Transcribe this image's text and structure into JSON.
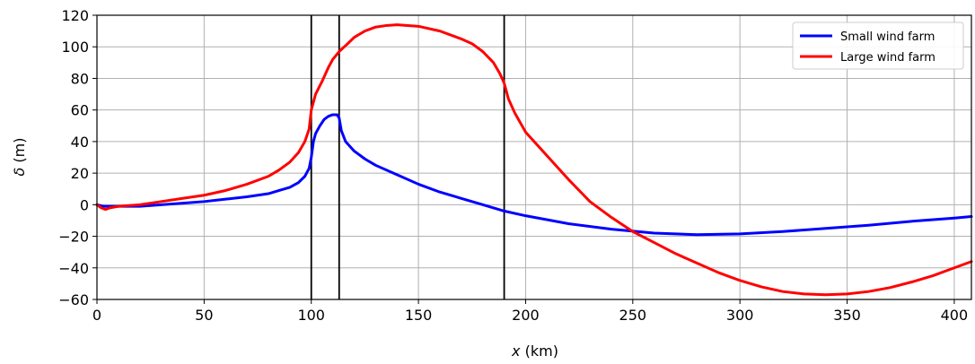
{
  "chart_data": {
    "type": "line",
    "title": "",
    "xlabel": "x (km)",
    "xlabel_var": "x",
    "xlabel_unit": " (km)",
    "ylabel": "δ (m)",
    "ylabel_var": "δ",
    "ylabel_unit": " (m)",
    "xlim": [
      0,
      408
    ],
    "ylim": [
      -60,
      120
    ],
    "xticks": [
      0,
      50,
      100,
      150,
      200,
      250,
      300,
      350,
      400
    ],
    "yticks": [
      -60,
      -40,
      -20,
      0,
      20,
      40,
      60,
      80,
      100,
      120
    ],
    "grid": true,
    "legend_position": "top-right",
    "vlines": [
      100,
      113,
      190
    ],
    "series": [
      {
        "name": "Small wind farm",
        "color": "#0000ff",
        "x": [
          0,
          3,
          5,
          10,
          20,
          30,
          40,
          50,
          60,
          70,
          80,
          85,
          90,
          94,
          97,
          99,
          100,
          101,
          102,
          104,
          106,
          108,
          110,
          112,
          113,
          114,
          116,
          120,
          125,
          130,
          140,
          150,
          160,
          170,
          180,
          190,
          200,
          220,
          240,
          260,
          280,
          300,
          320,
          340,
          360,
          380,
          400,
          408
        ],
        "y": [
          0,
          -1,
          -1,
          -1,
          -1,
          0,
          1,
          2,
          3.5,
          5,
          7,
          9,
          11,
          14,
          18,
          23,
          30,
          40,
          45,
          50,
          54,
          56,
          57,
          57,
          55,
          47,
          40,
          34,
          29,
          25,
          19,
          13,
          8,
          4,
          0,
          -4,
          -7,
          -12,
          -15.5,
          -18,
          -19,
          -18.5,
          -17,
          -15,
          -13,
          -10.5,
          -8.5,
          -7.5
        ]
      },
      {
        "name": "Large wind farm",
        "color": "#ff0000",
        "x": [
          0,
          2,
          4,
          6,
          10,
          20,
          30,
          40,
          50,
          60,
          70,
          80,
          85,
          90,
          94,
          97,
          99,
          100,
          102,
          105,
          108,
          110,
          113,
          117,
          120,
          125,
          130,
          135,
          140,
          145,
          150,
          160,
          170,
          175,
          180,
          185,
          188,
          190,
          192,
          195,
          200,
          210,
          220,
          230,
          240,
          250,
          260,
          270,
          280,
          290,
          300,
          310,
          320,
          330,
          340,
          350,
          360,
          370,
          380,
          390,
          400,
          408
        ],
        "y": [
          0,
          -2,
          -3,
          -2,
          -1,
          0,
          2,
          4,
          6,
          9,
          13,
          18,
          22,
          27,
          33,
          40,
          48,
          60,
          70,
          78,
          87,
          92,
          97,
          102,
          106,
          110,
          112.5,
          113.5,
          114,
          113.5,
          113,
          110,
          105,
          102,
          97,
          90,
          83,
          77,
          67,
          58,
          46,
          31,
          16,
          2,
          -8,
          -17,
          -24,
          -31,
          -37,
          -43,
          -48,
          -52,
          -55,
          -56.5,
          -57,
          -56.5,
          -55,
          -52.5,
          -49,
          -45,
          -40,
          -36
        ]
      }
    ]
  }
}
